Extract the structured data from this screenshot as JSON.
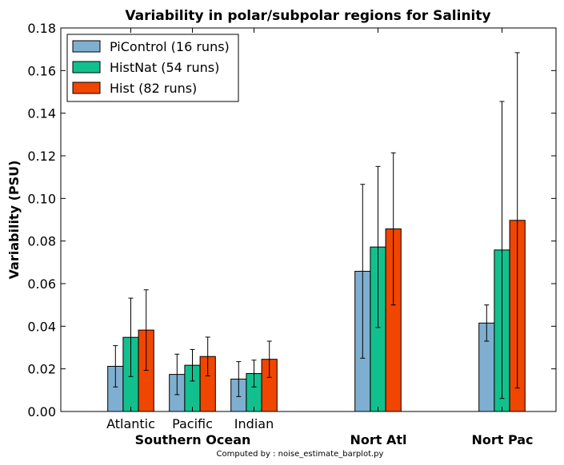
{
  "chart_data": {
    "type": "bar",
    "title": "Variability in polar/subpolar regions for Salinity",
    "xlabel": "",
    "ylabel": "Variability (PSU)",
    "ylim": [
      0,
      0.18
    ],
    "yticks": [
      "0.00",
      "0.02",
      "0.04",
      "0.06",
      "0.08",
      "0.10",
      "0.12",
      "0.14",
      "0.16",
      "0.18"
    ],
    "categories": [
      "Atlantic",
      "Pacific",
      "Indian",
      "",
      ""
    ],
    "groups": [
      "Southern Ocean",
      "Nort Atl",
      "Nort Pac"
    ],
    "legend_position": "top-left",
    "grid": false,
    "series": [
      {
        "name": "PiControl (16 runs)",
        "color": "#7fafd0",
        "values": [
          0.0212,
          0.0174,
          0.0152,
          0.0658,
          0.0415
        ],
        "err": [
          0.0097,
          0.0095,
          0.0082,
          0.0408,
          0.0085
        ]
      },
      {
        "name": "HistNat (54 runs)",
        "color": "#12c08e",
        "values": [
          0.0348,
          0.0217,
          0.0178,
          0.0772,
          0.0758
        ],
        "err": [
          0.0184,
          0.0074,
          0.0063,
          0.0378,
          0.0697
        ]
      },
      {
        "name": "Hist (82 runs)",
        "color": "#f04600",
        "values": [
          0.0382,
          0.0258,
          0.0245,
          0.0857,
          0.0897
        ],
        "err": [
          0.0189,
          0.0091,
          0.0085,
          0.0357,
          0.0787
        ]
      }
    ]
  },
  "footer": "Computed by : noise_estimate_barplot.py"
}
